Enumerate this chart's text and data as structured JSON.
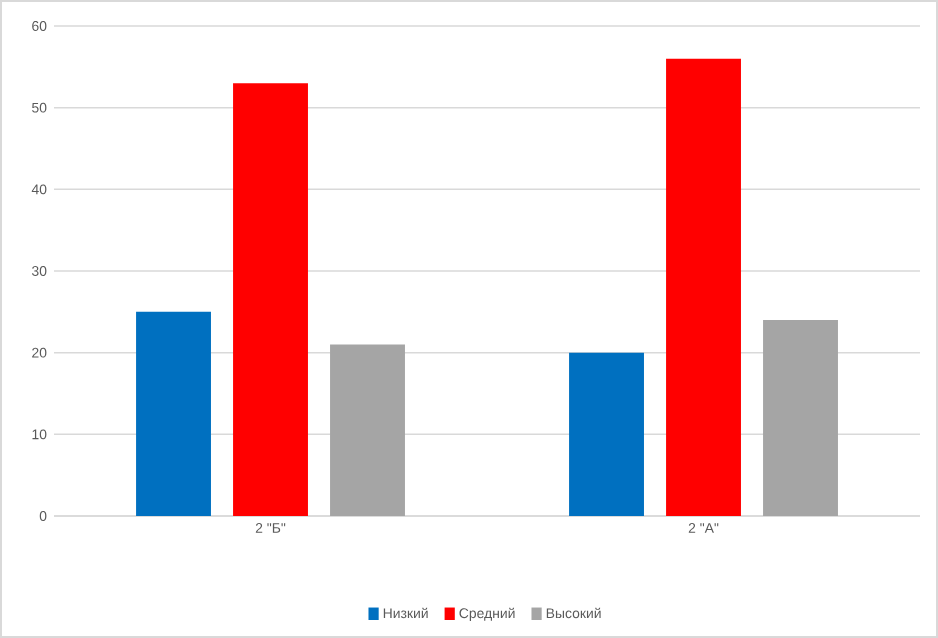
{
  "chart_data": {
    "type": "bar",
    "categories": [
      "2 \"Б\"",
      "2 \"А\""
    ],
    "series": [
      {
        "name": "Низкий",
        "color": "#0070c0",
        "values": [
          25,
          20
        ]
      },
      {
        "name": "Средний",
        "color": "#ff0000",
        "values": [
          53,
          56
        ]
      },
      {
        "name": "Высокий",
        "color": "#a5a5a5",
        "values": [
          21,
          24
        ]
      }
    ],
    "ylim": [
      0,
      60
    ],
    "yticks": [
      0,
      10,
      20,
      30,
      40,
      50,
      60
    ],
    "grid": "y",
    "legend": "bottom"
  }
}
